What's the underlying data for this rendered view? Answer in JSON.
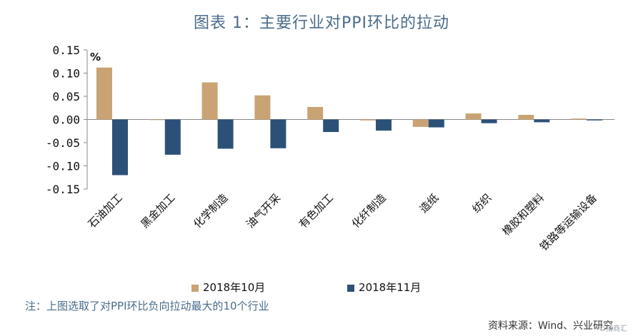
{
  "title": "图表 1：主要行业对PPI环比的拉动",
  "note": "注：上图选取了对PPI环比负向拉动最大的10个行业",
  "source": "资料来源：Wind、兴业研究",
  "watermark": "©招商汇",
  "colors": {
    "series_1": "#c9a374",
    "series_2": "#2c5178",
    "axis": "#888888"
  },
  "chart_data": {
    "type": "bar",
    "title": "图表 1：主要行业对PPI环比的拉动",
    "unit": "%",
    "categories": [
      "石油加工",
      "黑金加工",
      "化学制造",
      "油气开采",
      "有色加工",
      "化纤制造",
      "造纸",
      "纺织",
      "橡胶和塑料",
      "铁路等运输设备"
    ],
    "series": [
      {
        "name": "2018年10月",
        "values": [
          0.112,
          0.0,
          0.08,
          0.052,
          0.027,
          -0.002,
          -0.016,
          0.013,
          0.01,
          0.002
        ]
      },
      {
        "name": "2018年11月",
        "values": [
          -0.12,
          -0.076,
          -0.063,
          -0.062,
          -0.027,
          -0.024,
          -0.017,
          -0.008,
          -0.006,
          -0.002
        ]
      }
    ],
    "yticks": [
      "0.15",
      "0.10",
      "0.05",
      "0.00",
      "-0.05",
      "-0.10",
      "-0.15"
    ],
    "ylim": [
      -0.15,
      0.15
    ],
    "grid": false,
    "legend_position": "bottom"
  }
}
